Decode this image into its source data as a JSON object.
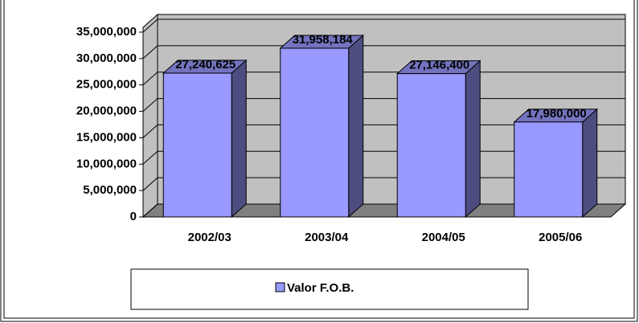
{
  "chart_data": {
    "type": "bar3d",
    "categories": [
      "2002/03",
      "2003/04",
      "2004/05",
      "2005/06"
    ],
    "series": [
      {
        "name": "Valor F.O.B.",
        "color": "#9999ff",
        "values": [
          27240625,
          31958184,
          27146400,
          17980000
        ],
        "value_labels": [
          "27,240,625",
          "31,958,184",
          "27,146,400",
          "17,980,000"
        ]
      }
    ],
    "ylim": [
      0,
      35000000
    ],
    "yticks": [
      0,
      {
        "value": 5000000,
        "label": "5,000,000"
      },
      {
        "value": 10000000,
        "label": "10,000,000"
      },
      {
        "value": 15000000,
        "label": "15,000,000"
      },
      {
        "value": 20000000,
        "label": "20,000,000"
      },
      {
        "value": 25000000,
        "label": "25,000,000"
      },
      {
        "value": 30000000,
        "label": "30,000,000"
      },
      {
        "value": 35000000,
        "label": "35,000,000"
      }
    ],
    "grid": true,
    "legend": "bottom"
  }
}
